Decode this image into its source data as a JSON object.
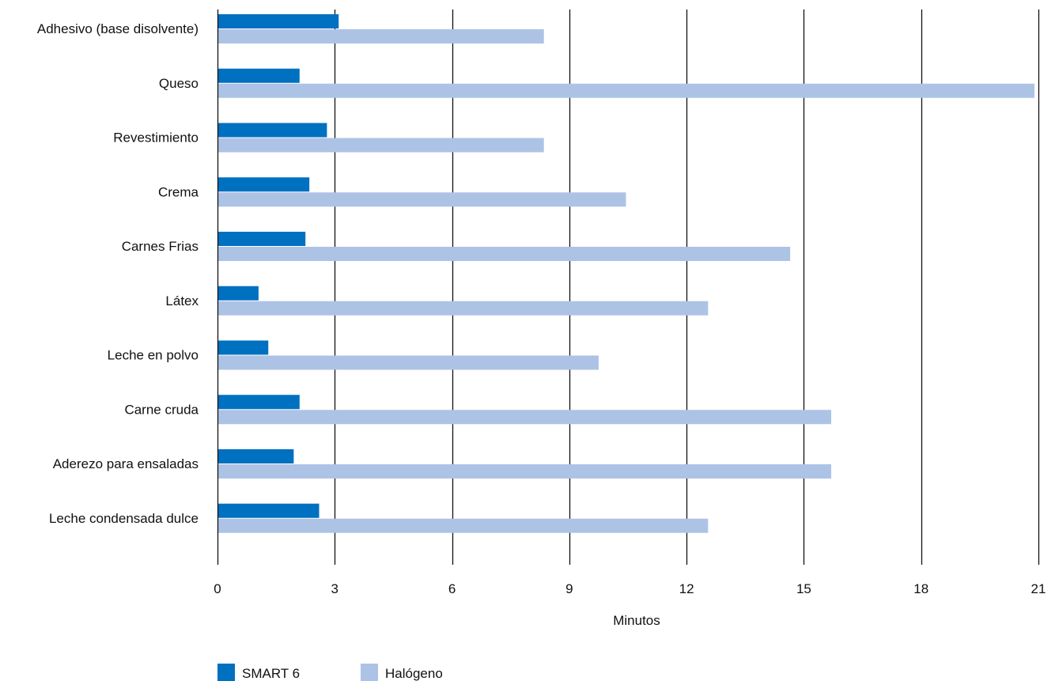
{
  "chart_data": {
    "type": "bar",
    "orientation": "horizontal",
    "title": "",
    "xlabel": "Minutos",
    "ylabel": "",
    "xlim": [
      0,
      21
    ],
    "xticks": [
      0,
      3,
      6,
      9,
      12,
      15,
      18,
      21
    ],
    "xtick_labels": [
      "0",
      "3",
      "6",
      "9",
      "12",
      "15",
      "18",
      "21"
    ],
    "grid": "vertical",
    "legend": "bottom-left",
    "categories": [
      "Adhesivo (base disolvente)",
      "Queso",
      "Revestimiento",
      "Crema",
      "Carnes Frias",
      "Látex",
      "Leche en polvo",
      "Carne cruda",
      "Aderezo para ensaladas",
      "Leche condensada dulce"
    ],
    "series": [
      {
        "name": "SMART 6",
        "color": "#0070c0",
        "values": [
          3.1,
          2.1,
          2.8,
          2.35,
          2.25,
          1.05,
          1.3,
          2.1,
          1.95,
          2.6
        ]
      },
      {
        "name": "Halógeno",
        "color": "#adc3e6",
        "values": [
          8.35,
          20.9,
          8.35,
          10.45,
          14.65,
          12.55,
          9.75,
          15.7,
          15.7,
          12.55
        ]
      }
    ]
  }
}
